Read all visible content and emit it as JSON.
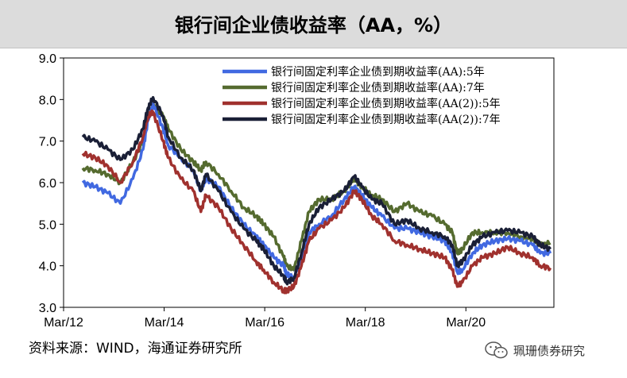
{
  "header": {
    "title": "银行间企业债收益率（AA，%）"
  },
  "footer": {
    "source": "资料来源：WIND，海通证券研究所"
  },
  "watermark": {
    "text": "珮珊债券研究",
    "icon": "wechat-icon"
  },
  "chart_data": {
    "type": "line",
    "title": "银行间企业债收益率（AA，%）",
    "xlabel": "",
    "ylabel": "",
    "ylim": [
      3.0,
      9.0
    ],
    "y_ticks": [
      "3.0",
      "4.0",
      "5.0",
      "6.0",
      "7.0",
      "8.0",
      "9.0"
    ],
    "x_ticks": [
      {
        "label": "Mar/12",
        "t": 2012.17
      },
      {
        "label": "Mar/14",
        "t": 2014.17
      },
      {
        "label": "Mar/16",
        "t": 2016.17
      },
      {
        "label": "Mar/18",
        "t": 2018.17
      },
      {
        "label": "Mar/20",
        "t": 2020.17
      }
    ],
    "xlim": [
      2012.17,
      2021.92
    ],
    "grid": false,
    "legend_position": "top-right",
    "x": [
      2012.55,
      2012.8,
      2013.05,
      2013.3,
      2013.55,
      2013.75,
      2013.85,
      2013.95,
      2014.15,
      2014.25,
      2014.5,
      2014.75,
      2014.9,
      2015.0,
      2015.25,
      2015.5,
      2015.75,
      2016.0,
      2016.15,
      2016.35,
      2016.55,
      2016.6,
      2016.75,
      2016.9,
      2017.05,
      2017.25,
      2017.5,
      2017.75,
      2017.95,
      2018.1,
      2018.3,
      2018.5,
      2018.75,
      2019.0,
      2019.25,
      2019.5,
      2019.75,
      2019.9,
      2020.0,
      2020.1,
      2020.3,
      2020.5,
      2020.75,
      2021.0,
      2021.25,
      2021.5,
      2021.65,
      2021.85
    ],
    "series": [
      {
        "name": "银行间固定利率企业债到期收益率(AA):5年",
        "color": "#4169e1",
        "values": [
          6.0,
          5.9,
          5.75,
          5.5,
          6.1,
          6.8,
          7.5,
          7.9,
          7.3,
          6.9,
          6.6,
          6.3,
          5.8,
          6.1,
          5.9,
          5.4,
          5.0,
          4.7,
          4.5,
          4.2,
          4.0,
          3.8,
          3.7,
          4.2,
          4.8,
          5.0,
          5.2,
          5.6,
          5.9,
          5.7,
          5.4,
          5.2,
          4.9,
          4.9,
          4.8,
          4.7,
          4.6,
          4.3,
          3.85,
          3.9,
          4.3,
          4.5,
          4.6,
          4.65,
          4.6,
          4.5,
          4.3,
          4.3
        ]
      },
      {
        "name": "银行间固定利率企业债到期收益率(AA):7年",
        "color": "#556b2f",
        "values": [
          6.35,
          6.3,
          6.2,
          6.0,
          6.5,
          7.0,
          7.6,
          7.85,
          7.6,
          7.3,
          6.8,
          6.5,
          6.3,
          6.5,
          6.2,
          5.8,
          5.4,
          5.2,
          5.0,
          4.7,
          4.2,
          4.0,
          3.9,
          4.6,
          5.3,
          5.6,
          5.6,
          5.8,
          6.1,
          5.9,
          5.7,
          5.6,
          5.3,
          5.5,
          5.3,
          5.2,
          5.0,
          4.8,
          4.3,
          4.4,
          4.8,
          4.8,
          4.8,
          4.8,
          4.7,
          4.65,
          4.5,
          4.55
        ]
      },
      {
        "name": "银行间固定利率企业债到期收益率(AA(2)):5年",
        "color": "#a0312e",
        "values": [
          6.7,
          6.6,
          6.4,
          6.0,
          6.5,
          7.1,
          7.6,
          7.7,
          7.0,
          6.6,
          6.1,
          5.8,
          5.3,
          5.7,
          5.4,
          4.9,
          4.5,
          4.1,
          3.9,
          3.6,
          3.4,
          3.4,
          3.5,
          4.0,
          4.6,
          4.9,
          5.1,
          5.4,
          5.8,
          5.6,
          5.2,
          5.0,
          4.6,
          4.5,
          4.4,
          4.3,
          4.2,
          3.9,
          3.5,
          3.6,
          4.0,
          4.2,
          4.3,
          4.45,
          4.3,
          4.2,
          4.0,
          3.95
        ]
      },
      {
        "name": "银行间固定利率企业债到期收益率(AA(2)):7年",
        "color": "#1a1f36",
        "values": [
          7.1,
          7.0,
          6.8,
          6.55,
          6.8,
          7.3,
          7.8,
          8.05,
          7.6,
          7.1,
          6.6,
          6.3,
          5.8,
          6.2,
          5.8,
          5.3,
          4.9,
          4.6,
          4.4,
          4.0,
          3.75,
          3.6,
          3.7,
          4.3,
          5.0,
          5.4,
          5.6,
          5.8,
          6.15,
          5.9,
          5.6,
          5.5,
          5.0,
          5.1,
          4.9,
          4.8,
          4.7,
          4.5,
          4.0,
          4.1,
          4.5,
          4.7,
          4.8,
          4.85,
          4.8,
          4.7,
          4.5,
          4.4
        ]
      }
    ]
  }
}
